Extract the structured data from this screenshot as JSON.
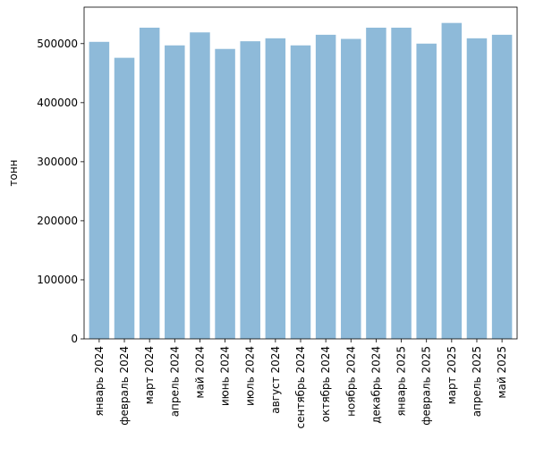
{
  "chart_data": {
    "type": "bar",
    "title": "",
    "xlabel": "",
    "ylabel": "тонн",
    "categories": [
      "январь 2024",
      "февраль 2024",
      "март 2024",
      "апрель 2024",
      "май 2024",
      "июнь 2024",
      "июль 2024",
      "август 2024",
      "сентябрь 2024",
      "октябрь 2024",
      "ноябрь 2024",
      "декабрь 2024",
      "январь 2025",
      "февраль 2025",
      "март 2025",
      "апрель 2025",
      "май 2025"
    ],
    "values": [
      503000,
      476000,
      527000,
      497000,
      519000,
      491000,
      504000,
      509000,
      497000,
      515000,
      508000,
      527000,
      527000,
      500000,
      535000,
      509000,
      515000
    ],
    "ylim": [
      0,
      561750
    ],
    "yticks": [
      0,
      100000,
      200000,
      300000,
      400000,
      500000
    ],
    "ytick_labels": [
      "0",
      "100000",
      "200000",
      "300000",
      "400000",
      "500000"
    ],
    "grid": false,
    "legend": "none",
    "colors": {
      "bar": "#8ebad9",
      "axis": "#000000",
      "background": "#ffffff"
    }
  }
}
